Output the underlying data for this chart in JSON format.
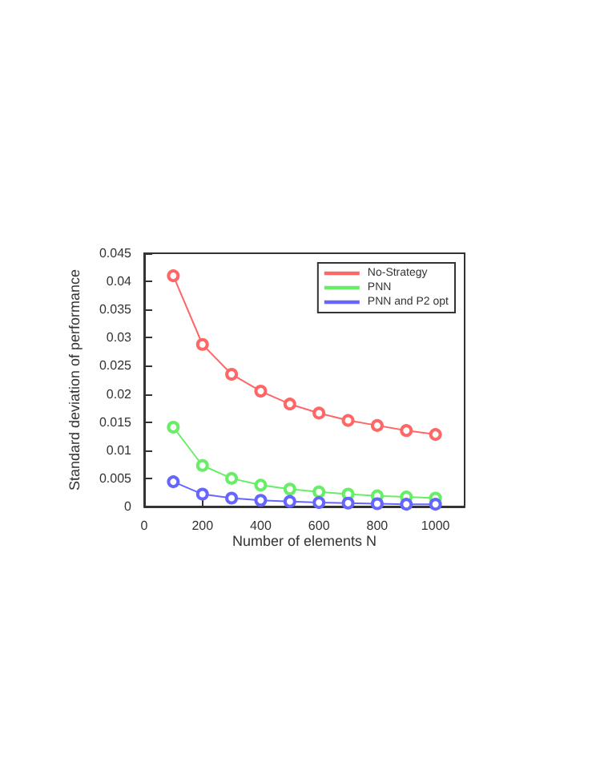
{
  "chart_data": {
    "type": "line",
    "xlabel": "Number of elements N",
    "ylabel": "Standard deviation of performance",
    "x": [
      100,
      200,
      300,
      400,
      500,
      600,
      700,
      800,
      900,
      1000
    ],
    "series": [
      {
        "name": "No-Strategy",
        "color": "#ff6666",
        "values": [
          0.041,
          0.0288,
          0.0235,
          0.0205,
          0.0182,
          0.0166,
          0.0153,
          0.0144,
          0.0135,
          0.0128
        ]
      },
      {
        "name": "PNN",
        "color": "#66ee66",
        "values": [
          0.0141,
          0.0073,
          0.005,
          0.0038,
          0.0031,
          0.0026,
          0.0022,
          0.0019,
          0.0017,
          0.0015
        ]
      },
      {
        "name": "PNN and P2 opt",
        "color": "#6666ff",
        "values": [
          0.0044,
          0.0022,
          0.0015,
          0.0011,
          0.0009,
          0.0007,
          0.0006,
          0.0005,
          0.0004,
          0.0004
        ]
      }
    ],
    "xlim": [
      0,
      1100
    ],
    "xticks": [
      0,
      200,
      400,
      600,
      800,
      1000
    ],
    "ylim": [
      0,
      0.045
    ],
    "yticks": [
      0,
      0.005,
      0.01,
      0.015,
      0.02,
      0.025,
      0.03,
      0.035,
      0.04,
      0.045
    ],
    "grid": false,
    "legend": "top right",
    "marker": "circle",
    "line_style": "solid"
  }
}
